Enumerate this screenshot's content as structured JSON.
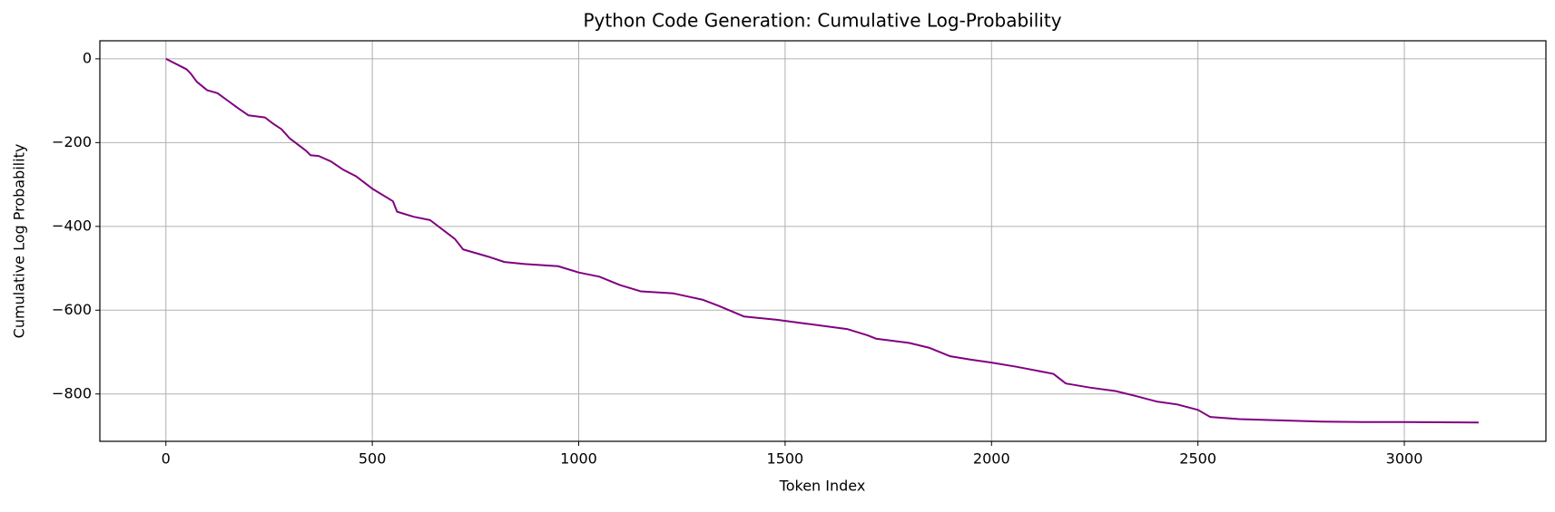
{
  "chart_data": {
    "type": "line",
    "title": "Python Code Generation: Cumulative Log-Probability",
    "xlabel": "Token Index",
    "ylabel": "Cumulative Log Probability",
    "color": "#800080",
    "grid": true,
    "x": [
      0,
      50,
      60,
      75,
      100,
      125,
      150,
      175,
      200,
      240,
      260,
      280,
      300,
      340,
      350,
      370,
      400,
      430,
      460,
      500,
      550,
      560,
      600,
      640,
      700,
      720,
      780,
      820,
      870,
      950,
      1000,
      1050,
      1100,
      1150,
      1230,
      1300,
      1340,
      1400,
      1480,
      1550,
      1650,
      1700,
      1720,
      1800,
      1850,
      1900,
      1950,
      2000,
      2060,
      2150,
      2180,
      2240,
      2300,
      2350,
      2400,
      2450,
      2500,
      2530,
      2600,
      2700,
      2800,
      2900,
      3000,
      3180
    ],
    "values": [
      0,
      -25,
      -35,
      -55,
      -75,
      -82,
      -100,
      -118,
      -135,
      -140,
      -155,
      -168,
      -190,
      -220,
      -230,
      -232,
      -245,
      -265,
      -280,
      -310,
      -340,
      -365,
      -377,
      -385,
      -430,
      -455,
      -472,
      -485,
      -490,
      -495,
      -510,
      -520,
      -540,
      -555,
      -560,
      -575,
      -590,
      -615,
      -623,
      -632,
      -645,
      -660,
      -668,
      -678,
      -690,
      -710,
      -718,
      -725,
      -735,
      -752,
      -775,
      -785,
      -793,
      -805,
      -818,
      -825,
      -838,
      -855,
      -860,
      -863,
      -866,
      -867,
      -867,
      -868
    ],
    "xlim": [
      -160,
      3343
    ],
    "ylim": [
      -913,
      43
    ],
    "xticks": [
      0,
      500,
      1000,
      1500,
      2000,
      2500,
      3000
    ],
    "yticks": [
      0,
      {
        "value": -200,
        "label": "−200"
      },
      {
        "value": -400,
        "label": "−400"
      },
      {
        "value": -600,
        "label": "−600"
      },
      {
        "value": -800,
        "label": "−800"
      }
    ]
  }
}
